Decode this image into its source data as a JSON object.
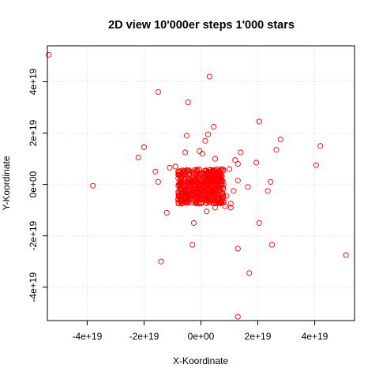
{
  "chart_data": {
    "type": "scatter",
    "title": "2D view 10'000er steps 1'000 stars",
    "xlabel": "X-Koordinate",
    "ylabel": "Y-Koordinate",
    "xlim": [
      -5.4e+19,
      5.4e+19
    ],
    "ylim": [
      -5.3e+19,
      5.4e+19
    ],
    "x_ticks": [
      -4e+19,
      -2e+19,
      0,
      2e+19,
      4e+19
    ],
    "x_tick_labels": [
      "-4e+19",
      "-2e+19",
      "0e+00",
      "2e+19",
      "4e+19"
    ],
    "y_ticks": [
      -4e+19,
      -2e+19,
      0,
      2e+19,
      4e+19
    ],
    "y_tick_labels": [
      "-4e+19",
      "-2e+19",
      "0e+00",
      "2e+19",
      "4e+19"
    ],
    "grid": true,
    "marker_color": "#ff0000",
    "series": [
      {
        "points": [
          [
            -5.35e+19,
            5.05e+19
          ],
          [
            3e+18,
            4.2e+19
          ],
          [
            -1.5e+19,
            3.6e+19
          ],
          [
            -4.5e+18,
            3.2e+19
          ],
          [
            2.05e+19,
            2.45e+19
          ],
          [
            4.5e+18,
            2.25e+19
          ],
          [
            2.5e+18,
            1.95e+19
          ],
          [
            -5e+18,
            1.9e+19
          ],
          [
            2.8e+19,
            1.75e+19
          ],
          [
            1.5e+18,
            1.7e+19
          ],
          [
            4.2e+19,
            1.5e+19
          ],
          [
            -2e+19,
            1.45e+19
          ],
          [
            2.65e+19,
            1.35e+19
          ],
          [
            -5e+17,
            1.3e+19
          ],
          [
            -5.5e+18,
            1.25e+19
          ],
          [
            1.4e+19,
            1.25e+19
          ],
          [
            5e+17,
            1.2e+19
          ],
          [
            -2.2e+19,
            1.05e+19
          ],
          [
            5e+18,
            1e+19
          ],
          [
            1.2e+19,
            9.5e+18
          ],
          [
            1.95e+19,
            8.5e+18
          ],
          [
            1.3e+19,
            8e+18
          ],
          [
            4.05e+19,
            7.5e+18
          ],
          [
            -9e+18,
            7e+18
          ],
          [
            -1.1e+19,
            6.5e+18
          ],
          [
            1e+19,
            6e+18
          ],
          [
            -1.6e+19,
            5e+18
          ],
          [
            -6.5e+18,
            5.5e+18
          ],
          [
            1.3e+19,
            1.5e+18
          ],
          [
            -1.5e+19,
            1e+18
          ],
          [
            2.45e+19,
            1e+18
          ],
          [
            -3.8e+19,
            -5e+17
          ],
          [
            1.65e+19,
            -1e+18
          ],
          [
            2.35e+19,
            -2.5e+18
          ],
          [
            1.15e+19,
            -2.5e+18
          ],
          [
            -5e+18,
            -3.5e+18
          ],
          [
            9e+18,
            -4.5e+18
          ],
          [
            7.5e+18,
            -5.5e+18
          ],
          [
            -8e+18,
            -6e+18
          ],
          [
            -4.5e+18,
            -6.5e+18
          ],
          [
            1.05e+19,
            -7.5e+18
          ],
          [
            8.5e+18,
            -8.5e+18
          ],
          [
            5e+18,
            -9e+18
          ],
          [
            1.05e+19,
            -9e+18
          ],
          [
            -1.2e+19,
            -1.1e+19
          ],
          [
            2e+18,
            -1.05e+19
          ],
          [
            -2.5e+18,
            -1.5e+19
          ],
          [
            2.05e+19,
            -1.5e+19
          ],
          [
            -3e+18,
            -2.35e+19
          ],
          [
            1.3e+19,
            -2.5e+19
          ],
          [
            2.5e+19,
            -2.35e+19
          ],
          [
            5.1e+19,
            -2.75e+19
          ],
          [
            -1.4e+19,
            -3e+19
          ],
          [
            1.7e+19,
            -3.45e+19
          ],
          [
            1.3e+19,
            -5.15e+19
          ]
        ]
      }
    ],
    "central_cluster": {
      "x_range": [
        -8e+18,
        8e+18
      ],
      "y_range": [
        -7.5e+18,
        6e+18
      ]
    }
  }
}
